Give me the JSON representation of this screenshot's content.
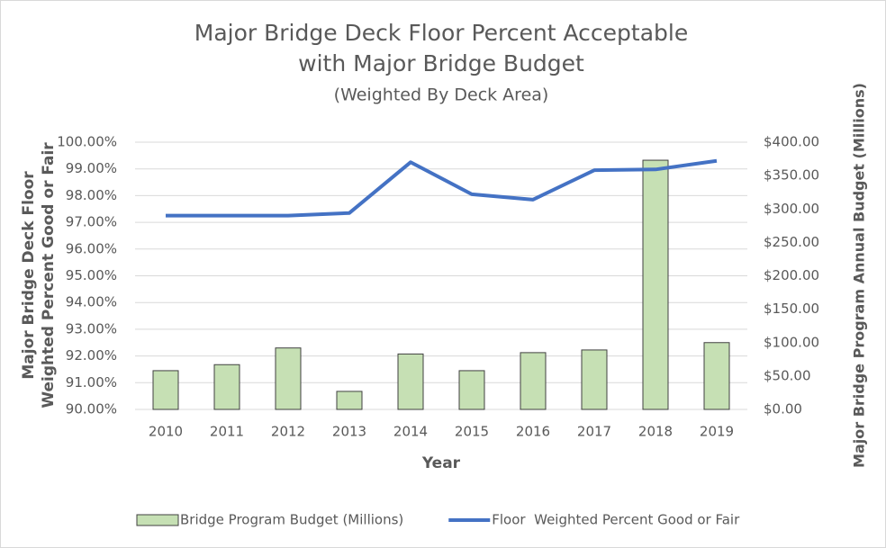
{
  "chart_data": {
    "type": "bar",
    "title": [
      "Major Bridge Deck Floor Percent Acceptable",
      "with Major Bridge Budget"
    ],
    "subtitle": "(Weighted By Deck Area)",
    "x_label": "Year",
    "y_label": [
      "Major Bridge Deck Floor",
      "Weighted Percent Good or Fair"
    ],
    "y2_label": "Major Bridge Program Annual Budget (Millions)",
    "categories": [
      "2010",
      "2011",
      "2012",
      "2013",
      "2014",
      "2015",
      "2016",
      "2017",
      "2018",
      "2019"
    ],
    "series": [
      {
        "name": "Bridge Program Budget (Millions)",
        "type": "bar",
        "axis": "y2",
        "color": "#c6e0b4",
        "values": [
          58,
          67,
          92,
          27,
          83,
          58,
          85,
          89,
          373,
          100
        ]
      },
      {
        "name": "Floor  Weighted Percent Good or Fair",
        "type": "line",
        "color": "#4472c4",
        "values": [
          97.25,
          97.25,
          97.25,
          97.35,
          99.25,
          98.05,
          97.85,
          98.95,
          98.98,
          99.3
        ]
      }
    ],
    "ylim": [
      90,
      100
    ],
    "yticks": [
      {
        "value": 90,
        "label": "90.00%"
      },
      {
        "value": 91,
        "label": "91.00%"
      },
      {
        "value": 92,
        "label": "92.00%"
      },
      {
        "value": 93,
        "label": "93.00%"
      },
      {
        "value": 94,
        "label": "94.00%"
      },
      {
        "value": 95,
        "label": "95.00%"
      },
      {
        "value": 96,
        "label": "96.00%"
      },
      {
        "value": 97,
        "label": "97.00%"
      },
      {
        "value": 98,
        "label": "98.00%"
      },
      {
        "value": 99,
        "label": "99.00%"
      },
      {
        "value": 100,
        "label": "100.00%"
      }
    ],
    "y2lim": [
      0,
      400
    ],
    "y2ticks": [
      {
        "value": 0,
        "label": "$0.00"
      },
      {
        "value": 50,
        "label": "$50.00"
      },
      {
        "value": 100,
        "label": "$100.00"
      },
      {
        "value": 150,
        "label": "$150.00"
      },
      {
        "value": 200,
        "label": "$200.00"
      },
      {
        "value": 250,
        "label": "$250.00"
      },
      {
        "value": 300,
        "label": "$300.00"
      },
      {
        "value": 350,
        "label": "$350.00"
      },
      {
        "value": 400,
        "label": "$400.00"
      }
    ],
    "grid": true,
    "legend": "bottom"
  }
}
